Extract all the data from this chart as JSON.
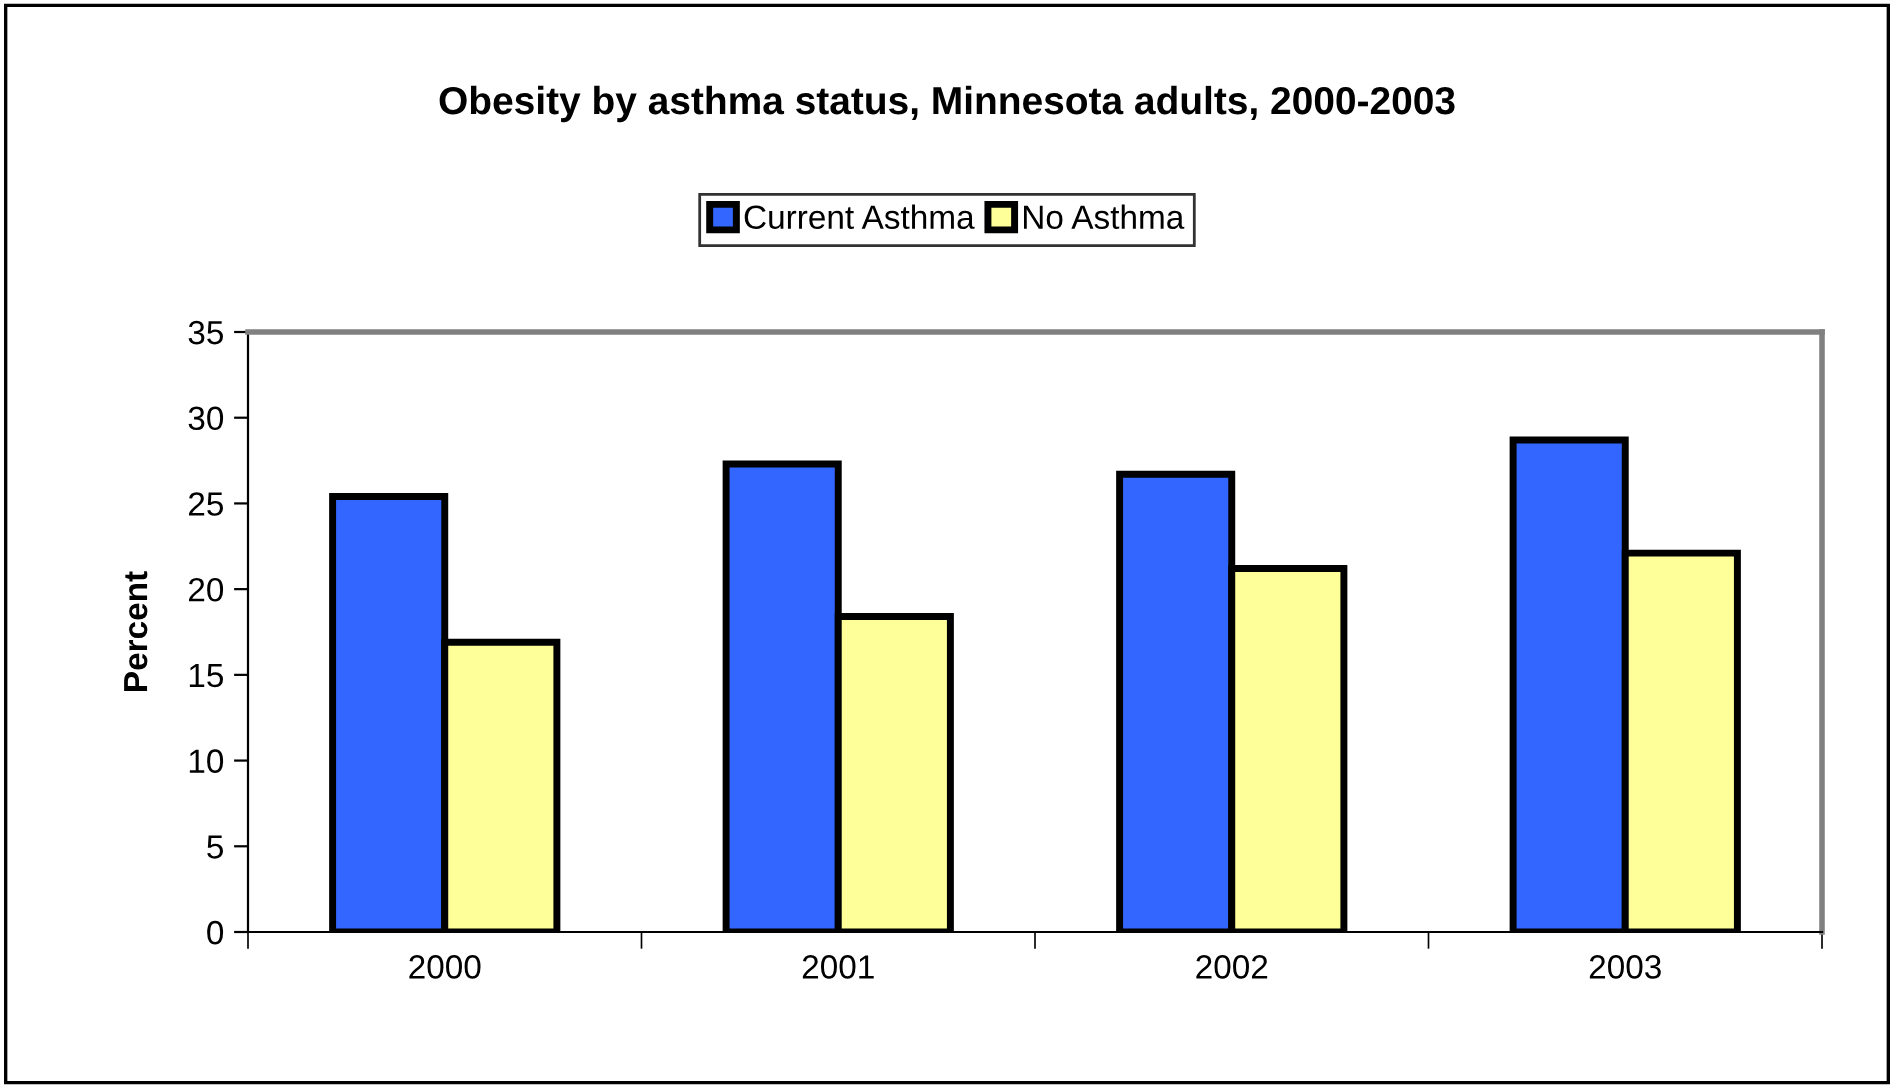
{
  "chart_data": {
    "type": "bar",
    "title": "Obesity by asthma status, Minnesota adults, 2000-2003",
    "ylabel": "Percent",
    "categories": [
      "2000",
      "2001",
      "2002",
      "2003"
    ],
    "series": [
      {
        "name": "Current Asthma",
        "color": "#3366ff",
        "values": [
          25.4,
          27.3,
          26.7,
          28.7
        ]
      },
      {
        "name": "No Asthma",
        "color": "#ffff99",
        "values": [
          16.9,
          18.4,
          21.2,
          22.1
        ]
      }
    ],
    "ylim": [
      0,
      35
    ],
    "yticks": [
      0,
      5,
      10,
      15,
      20,
      25,
      30,
      35
    ],
    "grid": false,
    "legend": "top"
  }
}
